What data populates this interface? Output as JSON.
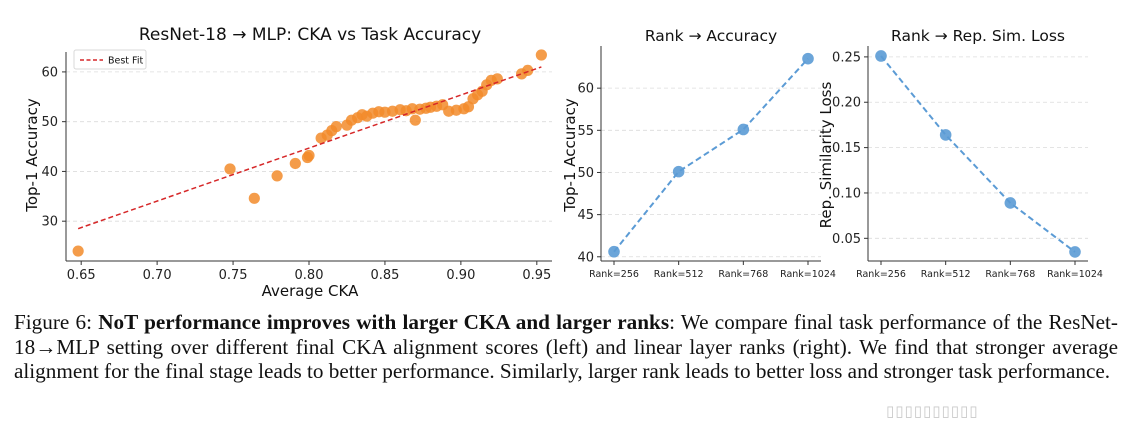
{
  "chart_data": [
    {
      "type": "scatter",
      "title": "ResNet-18 → MLP: CKA vs Task Accuracy",
      "xlabel": "Average CKA",
      "ylabel": "Top-1 Accuracy",
      "xlim": [
        0.64,
        0.96
      ],
      "ylim": [
        22,
        64
      ],
      "xticks": [
        0.65,
        0.7,
        0.75,
        0.8,
        0.85,
        0.9,
        0.95
      ],
      "xtick_labels": [
        "0.65",
        "0.70",
        "0.75",
        "0.80",
        "0.85",
        "0.90",
        "0.95"
      ],
      "yticks": [
        30,
        40,
        50,
        60
      ],
      "ytick_labels": [
        "30",
        "40",
        "50",
        "60"
      ],
      "color": "#f28b2a",
      "points": [
        [
          0.648,
          24.0
        ],
        [
          0.748,
          40.5
        ],
        [
          0.764,
          34.6
        ],
        [
          0.779,
          39.1
        ],
        [
          0.791,
          41.6
        ],
        [
          0.799,
          42.8
        ],
        [
          0.8,
          43.2
        ],
        [
          0.808,
          46.7
        ],
        [
          0.812,
          47.3
        ],
        [
          0.815,
          48.2
        ],
        [
          0.818,
          49.0
        ],
        [
          0.825,
          49.3
        ],
        [
          0.828,
          50.3
        ],
        [
          0.832,
          50.8
        ],
        [
          0.835,
          51.4
        ],
        [
          0.838,
          51.1
        ],
        [
          0.842,
          51.7
        ],
        [
          0.846,
          52.0
        ],
        [
          0.85,
          51.9
        ],
        [
          0.855,
          52.1
        ],
        [
          0.86,
          52.4
        ],
        [
          0.864,
          52.2
        ],
        [
          0.868,
          52.6
        ],
        [
          0.87,
          50.3
        ],
        [
          0.873,
          52.5
        ],
        [
          0.877,
          52.7
        ],
        [
          0.88,
          52.9
        ],
        [
          0.884,
          53.1
        ],
        [
          0.888,
          53.4
        ],
        [
          0.892,
          52.1
        ],
        [
          0.897,
          52.3
        ],
        [
          0.902,
          52.6
        ],
        [
          0.905,
          53.0
        ],
        [
          0.908,
          54.6
        ],
        [
          0.911,
          55.4
        ],
        [
          0.914,
          56.1
        ],
        [
          0.917,
          57.4
        ],
        [
          0.92,
          58.3
        ],
        [
          0.924,
          58.6
        ],
        [
          0.94,
          59.6
        ],
        [
          0.944,
          60.3
        ],
        [
          0.953,
          63.4
        ]
      ],
      "fit": {
        "x": [
          0.648,
          0.953
        ],
        "y": [
          28.5,
          61.0
        ],
        "label": "Best Fit",
        "color": "#d62728"
      },
      "legend_position": "top-left",
      "grid": "horizontal dashed"
    },
    {
      "type": "line",
      "title": "Rank → Accuracy",
      "categories": [
        "Rank=256",
        "Rank=512",
        "Rank=768",
        "Rank=1024"
      ],
      "values": [
        40.6,
        50.1,
        55.1,
        63.5
      ],
      "xlabel": "",
      "ylabel": "Top-1 Accuracy",
      "ylim": [
        39.5,
        65
      ],
      "yticks": [
        40,
        45,
        50,
        55,
        60
      ],
      "ytick_labels": [
        "40",
        "45",
        "50",
        "55",
        "60"
      ],
      "color": "#5b9bd5",
      "grid": "horizontal dashed"
    },
    {
      "type": "line",
      "title": "Rank → Rep. Sim. Loss",
      "categories": [
        "Rank=256",
        "Rank=512",
        "Rank=768",
        "Rank=1024"
      ],
      "values": [
        0.251,
        0.164,
        0.089,
        0.035
      ],
      "xlabel": "",
      "ylabel": "Rep. Similarity Loss",
      "ylim": [
        0.025,
        0.262
      ],
      "yticks": [
        0.05,
        0.1,
        0.15,
        0.2,
        0.25
      ],
      "ytick_labels": [
        "0.05",
        "0.10",
        "0.15",
        "0.20",
        "0.25"
      ],
      "color": "#5b9bd5",
      "grid": "horizontal dashed"
    }
  ],
  "caption": {
    "label": "Figure 6: ",
    "bold": "NoT performance improves with larger CKA and larger ranks",
    "text": ": We compare final task performance of the ResNet-18→MLP setting over different final CKA alignment scores (left) and linear layer ranks (right). We find that stronger average alignment for the final stage leads to better performance. Similarly, larger rank leads to better loss and stronger task performance."
  },
  "watermark": "▯▯▯▯▯▯▯▯▯▯"
}
